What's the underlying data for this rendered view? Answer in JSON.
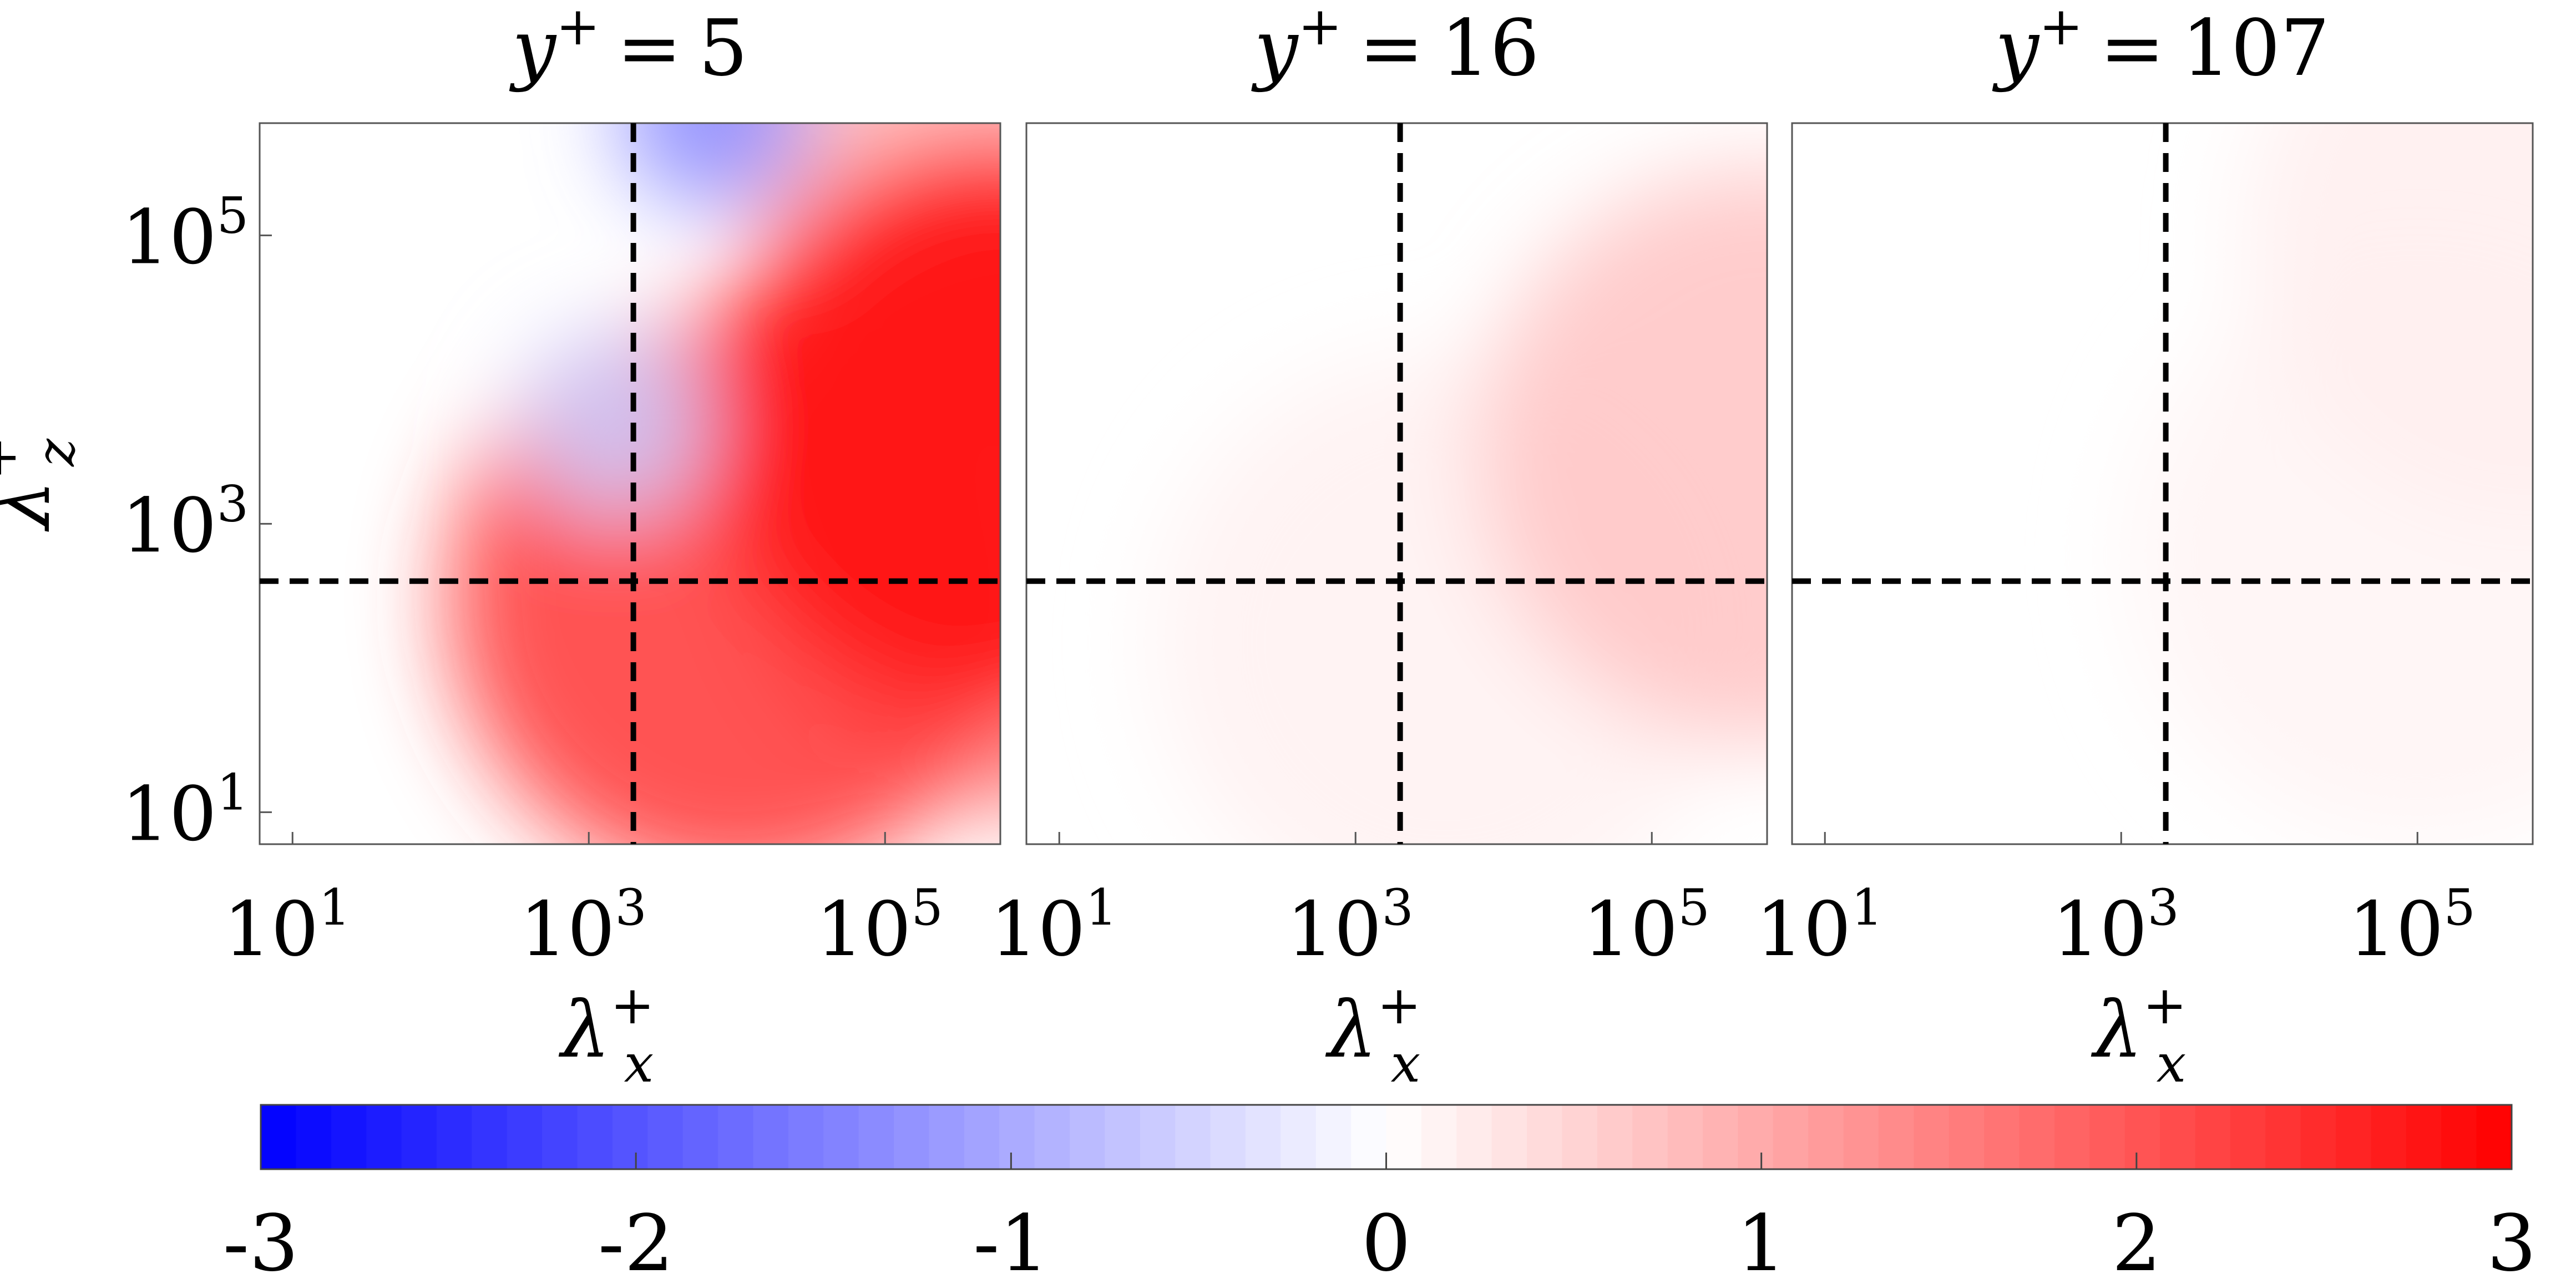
{
  "chart_data": [
    {
      "type": "heatmap",
      "title_var": "y",
      "title_sup": "+",
      "title_rel": "=",
      "title_value": "5",
      "xlabel_base": "λ",
      "xlabel_sup": "+",
      "xlabel_sub": "x",
      "ylabel_base": "λ",
      "ylabel_sup": "+",
      "ylabel_sub": "z",
      "x_scale": "log",
      "y_scale": "log",
      "xlim": [
        6,
        600000
      ],
      "ylim": [
        6,
        600000
      ],
      "x_ticks": [
        {
          "value": 10,
          "base": "10",
          "exp": "1"
        },
        {
          "value": 1000,
          "base": "10",
          "exp": "3"
        },
        {
          "value": 100000,
          "base": "10",
          "exp": "5"
        }
      ],
      "y_ticks": [
        {
          "value": 10,
          "base": "10",
          "exp": "1"
        },
        {
          "value": 1000,
          "base": "10",
          "exp": "3"
        },
        {
          "value": 100000,
          "base": "10",
          "exp": "5"
        }
      ],
      "reference_lines": {
        "x": 2000,
        "y": 400,
        "style": "dashed"
      },
      "field": [
        {
          "x": 1000000,
          "y": 300000,
          "sign": "positive",
          "level": 0.25
        },
        {
          "x": 1000000,
          "y": 1000,
          "sign": "positive",
          "level": 0.5
        },
        {
          "x": 10000,
          "y": 300,
          "sign": "positive",
          "level": 0.75
        },
        {
          "x": 600000,
          "y": 5000,
          "sign": "positive",
          "level": 0.95
        },
        {
          "x": 1500,
          "y": 5000,
          "sign": "negative",
          "level": 0.2
        },
        {
          "x": 7000,
          "y": 700000,
          "sign": "negative",
          "level": 0.45
        }
      ]
    },
    {
      "type": "heatmap",
      "title_var": "y",
      "title_sup": "+",
      "title_rel": "=",
      "title_value": "16",
      "xlabel_base": "λ",
      "xlabel_sup": "+",
      "xlabel_sub": "x",
      "x_scale": "log",
      "y_scale": "log",
      "xlim": [
        6,
        600000
      ],
      "ylim": [
        6,
        600000
      ],
      "x_ticks": [
        {
          "value": 10,
          "base": "10",
          "exp": "1"
        },
        {
          "value": 1000,
          "base": "10",
          "exp": "3"
        },
        {
          "value": 100000,
          "base": "10",
          "exp": "5"
        }
      ],
      "reference_lines": {
        "x": 2000,
        "y": 400,
        "style": "dashed"
      },
      "field": [
        {
          "x": 4000,
          "y": 150,
          "sign": "positive",
          "level": 0.05
        },
        {
          "x": 600000,
          "y": 3000,
          "sign": "positive",
          "level": 0.22
        }
      ]
    },
    {
      "type": "heatmap",
      "title_var": "y",
      "title_sup": "+",
      "title_rel": "=",
      "title_value": "107",
      "xlabel_base": "λ",
      "xlabel_sup": "+",
      "xlabel_sub": "x",
      "x_scale": "log",
      "y_scale": "log",
      "xlim": [
        6,
        600000
      ],
      "ylim": [
        6,
        600000
      ],
      "x_ticks": [
        {
          "value": 10,
          "base": "10",
          "exp": "1"
        },
        {
          "value": 1000,
          "base": "10",
          "exp": "3"
        },
        {
          "value": 100000,
          "base": "10",
          "exp": "5"
        }
      ],
      "reference_lines": {
        "x": 2000,
        "y": 400,
        "style": "dashed"
      },
      "field": [
        {
          "x": 100000,
          "y": 600,
          "sign": "positive",
          "level": 0.04
        },
        {
          "x": 600000,
          "y": 100000,
          "sign": "positive",
          "level": 0.06
        }
      ]
    }
  ],
  "colorbar": {
    "range": [
      -3,
      3
    ],
    "ticks": [
      "-3",
      "-2",
      "-1",
      "0",
      "1",
      "2",
      "3"
    ],
    "color_min": "#0000ff",
    "color_mid": "#ffffff",
    "color_max": "#ff0000",
    "steps": 64
  }
}
